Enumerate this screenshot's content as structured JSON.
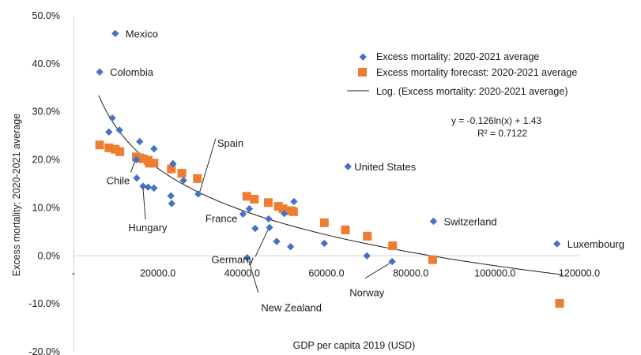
{
  "chart_data": {
    "type": "scatter",
    "title": "",
    "xlabel": "GDP per capita 2019 (USD)",
    "ylabel": "Excess mortality: 2020-2021 average",
    "xlim": [
      0,
      120000
    ],
    "ylim": [
      -0.2,
      0.5
    ],
    "x_ticks": [
      {
        "value": 0,
        "label": "-"
      },
      {
        "value": 20000,
        "label": "20000.0"
      },
      {
        "value": 40000,
        "label": "40000.0"
      },
      {
        "value": 60000,
        "label": "60000.0"
      },
      {
        "value": 80000,
        "label": "80000.0"
      },
      {
        "value": 100000,
        "label": "100000.0"
      },
      {
        "value": 120000,
        "label": "120000.0"
      }
    ],
    "y_ticks": [
      {
        "value": 0.5,
        "label": "50.0%"
      },
      {
        "value": 0.4,
        "label": "40.0%"
      },
      {
        "value": 0.3,
        "label": "30.0%"
      },
      {
        "value": 0.2,
        "label": "20.0%"
      },
      {
        "value": 0.1,
        "label": "10.0%"
      },
      {
        "value": 0.0,
        "label": "0.0%"
      },
      {
        "value": -0.1,
        "label": "-10.0%"
      },
      {
        "value": -0.2,
        "label": "-20.0%"
      }
    ],
    "grid": false,
    "legend_position": "top-right",
    "series": [
      {
        "name": "Excess mortality: 2020-2021 average",
        "marker": "diamond",
        "color": "#4472c4",
        "points": [
          {
            "x": 9900,
            "y": 0.463,
            "label": "Mexico"
          },
          {
            "x": 6200,
            "y": 0.383,
            "label": "Colombia"
          },
          {
            "x": 8400,
            "y": 0.258
          },
          {
            "x": 9200,
            "y": 0.287
          },
          {
            "x": 10900,
            "y": 0.262
          },
          {
            "x": 14900,
            "y": 0.2,
            "label": "Chile"
          },
          {
            "x": 15700,
            "y": 0.238
          },
          {
            "x": 15000,
            "y": 0.162
          },
          {
            "x": 16500,
            "y": 0.145,
            "label": "Hungary"
          },
          {
            "x": 17700,
            "y": 0.143
          },
          {
            "x": 19100,
            "y": 0.141
          },
          {
            "x": 19100,
            "y": 0.223
          },
          {
            "x": 23600,
            "y": 0.192
          },
          {
            "x": 23100,
            "y": 0.125
          },
          {
            "x": 23300,
            "y": 0.109
          },
          {
            "x": 26100,
            "y": 0.157
          },
          {
            "x": 29600,
            "y": 0.129,
            "label": "Spain"
          },
          {
            "x": 40200,
            "y": 0.087,
            "label": "France"
          },
          {
            "x": 41700,
            "y": 0.098
          },
          {
            "x": 43100,
            "y": 0.057
          },
          {
            "x": 46300,
            "y": 0.077
          },
          {
            "x": 46500,
            "y": 0.059,
            "label": "Germany"
          },
          {
            "x": 48200,
            "y": 0.03
          },
          {
            "x": 50000,
            "y": 0.088
          },
          {
            "x": 51500,
            "y": 0.019
          },
          {
            "x": 52300,
            "y": 0.113
          },
          {
            "x": 41200,
            "y": -0.004,
            "label": "New Zealand"
          },
          {
            "x": 59500,
            "y": 0.026
          },
          {
            "x": 65100,
            "y": 0.186,
            "label": "United States"
          },
          {
            "x": 69600,
            "y": 0.0
          },
          {
            "x": 75600,
            "y": -0.012,
            "label": "Norway"
          },
          {
            "x": 85400,
            "y": 0.072,
            "label": "Switzerland"
          },
          {
            "x": 114700,
            "y": 0.025,
            "label": "Luxembourg"
          }
        ]
      },
      {
        "name": "Excess mortality forecast: 2020-2021 average",
        "marker": "square",
        "color": "#ed7d31",
        "points": [
          {
            "x": 6200,
            "y": 0.231
          },
          {
            "x": 8400,
            "y": 0.225
          },
          {
            "x": 9900,
            "y": 0.222
          },
          {
            "x": 11000,
            "y": 0.217
          },
          {
            "x": 14900,
            "y": 0.206
          },
          {
            "x": 15700,
            "y": 0.204
          },
          {
            "x": 16500,
            "y": 0.202
          },
          {
            "x": 17700,
            "y": 0.199
          },
          {
            "x": 18000,
            "y": 0.193
          },
          {
            "x": 19100,
            "y": 0.193
          },
          {
            "x": 23200,
            "y": 0.181
          },
          {
            "x": 25700,
            "y": 0.172
          },
          {
            "x": 29400,
            "y": 0.161
          },
          {
            "x": 41100,
            "y": 0.124
          },
          {
            "x": 42900,
            "y": 0.118
          },
          {
            "x": 46200,
            "y": 0.111
          },
          {
            "x": 48600,
            "y": 0.103
          },
          {
            "x": 49700,
            "y": 0.098
          },
          {
            "x": 51600,
            "y": 0.094
          },
          {
            "x": 52200,
            "y": 0.092
          },
          {
            "x": 59500,
            "y": 0.069
          },
          {
            "x": 64500,
            "y": 0.054
          },
          {
            "x": 69700,
            "y": 0.041
          },
          {
            "x": 75700,
            "y": 0.021
          },
          {
            "x": 85200,
            "y": -0.008
          },
          {
            "x": 115300,
            "y": -0.099
          }
        ]
      }
    ],
    "trendline": {
      "name": "Log. (Excess mortality: 2020-2021 average)",
      "type": "log",
      "a": -0.126,
      "b": 1.43,
      "x_range": [
        6000,
        116000
      ],
      "color": "#1a1a1a"
    },
    "annotation": {
      "equation": "y = -0.126ln(x) + 1.43",
      "r_squared": "R² = 0.7122"
    }
  }
}
